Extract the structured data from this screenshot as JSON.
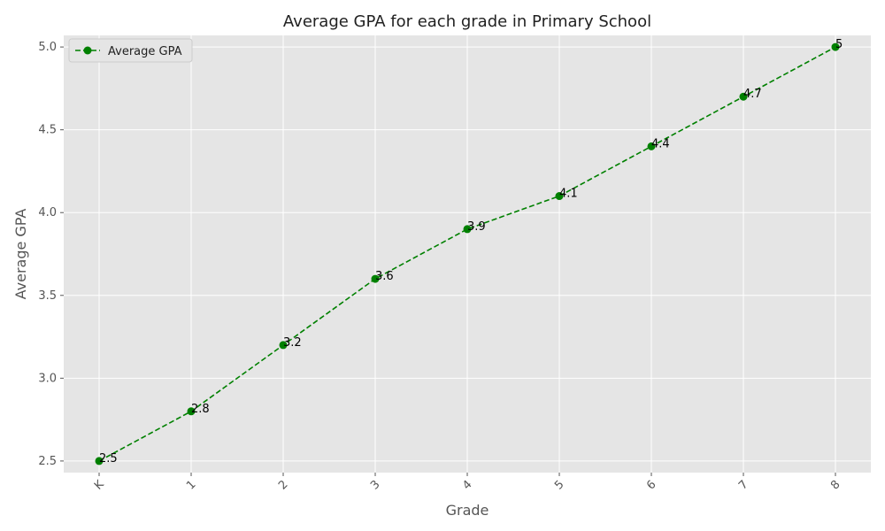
{
  "chart_data": {
    "type": "line",
    "title": "Average GPA for each grade in Primary School",
    "xlabel": "Grade",
    "ylabel": "Average GPA",
    "categories": [
      "K",
      "1",
      "2",
      "3",
      "4",
      "5",
      "6",
      "7",
      "8"
    ],
    "series": [
      {
        "name": "Average GPA",
        "values": [
          2.5,
          2.8,
          3.2,
          3.6,
          3.9,
          4.1,
          4.4,
          4.7,
          5.0
        ],
        "data_labels": [
          "2.5",
          "2.8",
          "3.2",
          "3.6",
          "3.9",
          "4.1",
          "4.4",
          "4.7",
          "5"
        ],
        "color": "#008000",
        "line_style": "dashed",
        "marker": "circle"
      }
    ],
    "ylim": [
      2.43,
      5.07
    ],
    "yticks": [
      2.5,
      3.0,
      3.5,
      4.0,
      4.5,
      5.0
    ],
    "ytick_labels": [
      "2.5",
      "3.0",
      "3.5",
      "4.0",
      "4.5",
      "5.0"
    ],
    "xtick_rotation_deg": 45,
    "grid": true,
    "legend_position": "top-left",
    "background_color": "#e5e5e5",
    "grid_color": "#ffffff"
  }
}
